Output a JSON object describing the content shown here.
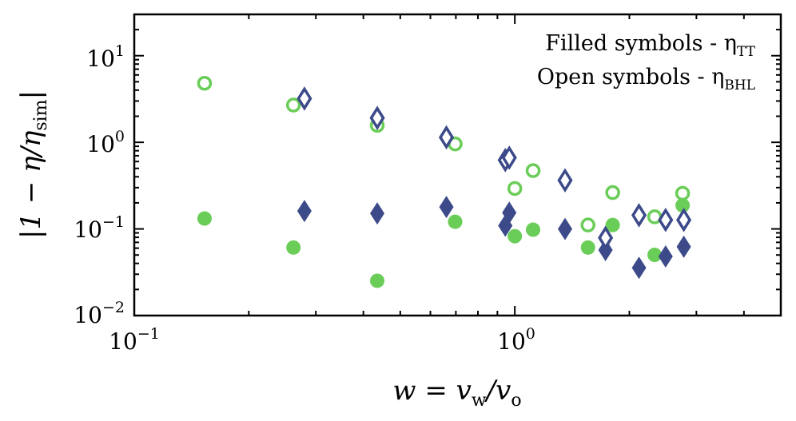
{
  "chart_data": {
    "type": "scatter",
    "xscale": "log",
    "yscale": "log",
    "xlim": [
      0.1,
      5
    ],
    "ylim": [
      0.01,
      30
    ],
    "xlabel": {
      "main": "w = v",
      "sub1": "w",
      "mid": "/v",
      "sub2": "o"
    },
    "ylabel": {
      "main": "|1 − η/η",
      "sub": "sim",
      "end": "|"
    },
    "x_ticks": [
      {
        "base": "10",
        "exp": "−1",
        "value": 0.1
      },
      {
        "base": "10",
        "exp": "0",
        "value": 1
      }
    ],
    "y_ticks": [
      {
        "base": "10",
        "exp": "−2",
        "value": 0.01
      },
      {
        "base": "10",
        "exp": "−1",
        "value": 0.1
      },
      {
        "base": "10",
        "exp": "0",
        "value": 1
      },
      {
        "base": "10",
        "exp": "1",
        "value": 10
      }
    ],
    "legend_text": [
      {
        "text": "Filled symbols - η",
        "sub": "TT"
      },
      {
        "text": "Open symbols - η",
        "sub": "BHL"
      }
    ],
    "legend_position": "top-right",
    "colors": {
      "green": "#6acd58",
      "navy": "#3c4a8a"
    },
    "series": [
      {
        "name": "circle filled (η_TT)",
        "marker": "circle",
        "filled": true,
        "color": "green",
        "x": [
          0.153,
          0.262,
          0.435,
          0.697,
          1.0,
          1.117,
          1.557,
          1.808,
          2.33,
          2.76
        ],
        "y": [
          0.132,
          0.061,
          0.0252,
          0.121,
          0.0824,
          0.098,
          0.061,
          0.111,
          0.0502,
          0.187
        ]
      },
      {
        "name": "circle open (η_BHL)",
        "marker": "circle",
        "filled": false,
        "color": "green",
        "x": [
          0.153,
          0.262,
          0.435,
          0.697,
          1.0,
          1.117,
          1.557,
          1.808,
          2.33,
          2.76
        ],
        "y": [
          4.81,
          2.69,
          1.57,
          0.958,
          0.293,
          0.471,
          0.111,
          0.263,
          0.138,
          0.258
        ]
      },
      {
        "name": "diamond filled (η_TT)",
        "marker": "diamond",
        "filled": true,
        "color": "navy",
        "x": [
          0.28,
          0.435,
          0.661,
          0.944,
          0.967,
          1.355,
          1.731,
          2.12,
          2.49,
          2.78
        ],
        "y": [
          0.161,
          0.151,
          0.179,
          0.109,
          0.154,
          0.1,
          0.0571,
          0.0356,
          0.0481,
          0.0623
        ]
      },
      {
        "name": "diamond open (η_BHL)",
        "marker": "diamond",
        "filled": false,
        "color": "navy",
        "x": [
          0.28,
          0.435,
          0.661,
          0.944,
          0.967,
          1.355,
          1.731,
          2.12,
          2.49,
          2.78
        ],
        "y": [
          3.2,
          1.91,
          1.14,
          0.623,
          0.664,
          0.364,
          0.0789,
          0.144,
          0.127,
          0.127
        ]
      }
    ]
  }
}
